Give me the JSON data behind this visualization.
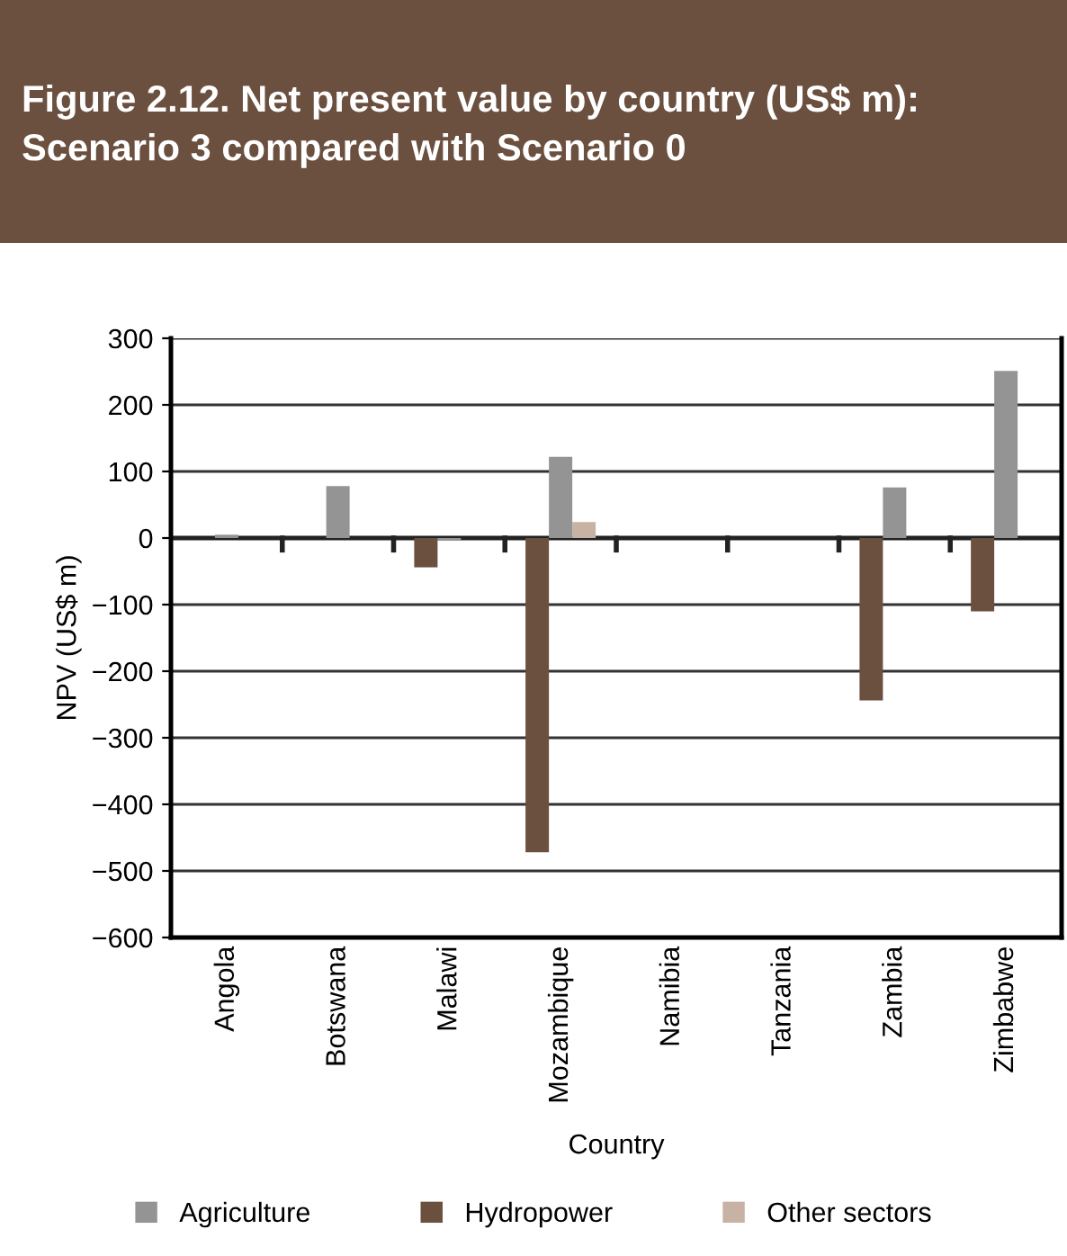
{
  "chart_data": {
    "type": "bar",
    "title": "Figure 2.12. Net present value by country (US$ m):\nScenario 3 compared with Scenario 0",
    "xlabel": "Country",
    "ylabel": "NPV (US$ m)",
    "categories": [
      "Angola",
      "Botswana",
      "Malawi",
      "Mozambique",
      "Namibia",
      "Tanzania",
      "Zambia",
      "Zimbabwe"
    ],
    "series": [
      {
        "name": "Hydropower",
        "color": "#6b4f3f",
        "values": [
          null,
          null,
          -44,
          -472,
          null,
          null,
          -244,
          -110
        ]
      },
      {
        "name": "Agriculture",
        "color": "#949494",
        "values": [
          5,
          78,
          -4,
          122,
          null,
          null,
          76,
          251
        ]
      },
      {
        "name": "Other sectors",
        "color": "#c8b2a4",
        "values": [
          null,
          null,
          null,
          24,
          null,
          null,
          null,
          null
        ]
      }
    ],
    "ylim": [
      -600,
      300
    ],
    "yticks": [
      -600,
      -500,
      -400,
      -300,
      -200,
      -100,
      0,
      100,
      200,
      300
    ],
    "grid": "y",
    "legend": "bottom"
  }
}
